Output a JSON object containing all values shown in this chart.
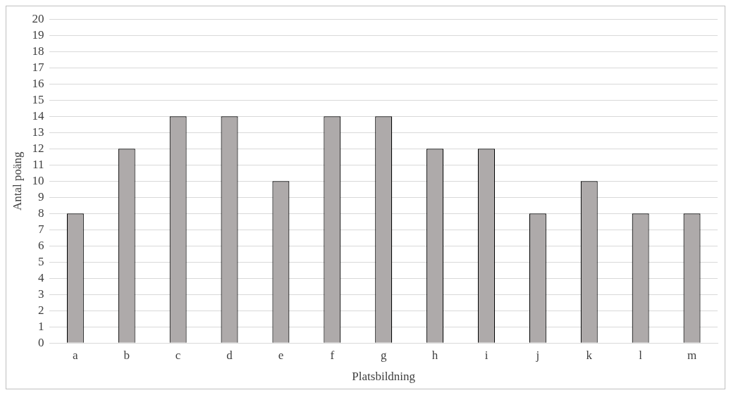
{
  "chart_data": {
    "type": "bar",
    "xlabel": "Platsbildning",
    "ylabel": "Antal poäng",
    "categories": [
      "a",
      "b",
      "c",
      "d",
      "e",
      "f",
      "g",
      "h",
      "i",
      "j",
      "k",
      "l",
      "m"
    ],
    "values": [
      8,
      12,
      14,
      14,
      10,
      14,
      14,
      12,
      12,
      8,
      10,
      8,
      8
    ],
    "color": "#aeaaaa",
    "ylim": [
      0,
      20
    ],
    "yticks": [
      0,
      1,
      2,
      3,
      4,
      5,
      6,
      7,
      8,
      9,
      10,
      11,
      12,
      13,
      14,
      15,
      16,
      17,
      18,
      19,
      20
    ],
    "grid": "y"
  }
}
